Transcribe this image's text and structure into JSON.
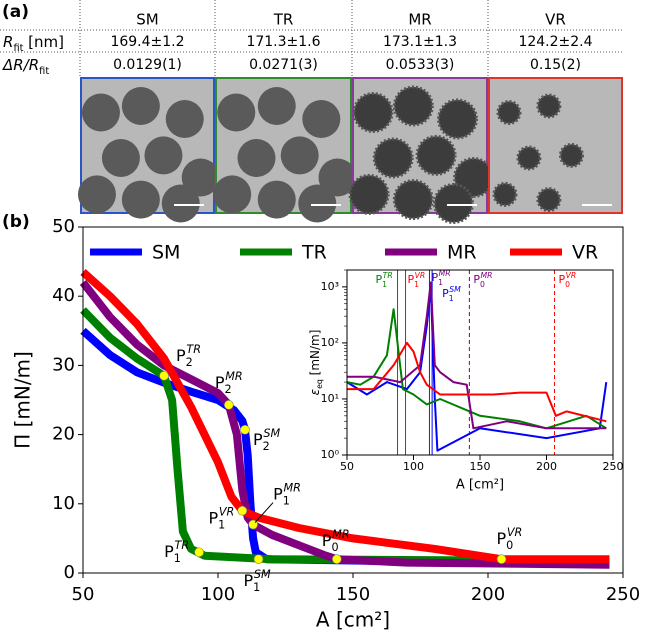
{
  "panel_a": {
    "label": "(a)",
    "columns": [
      {
        "name": "SM",
        "color": "#2a55c8"
      },
      {
        "name": "TR",
        "color": "#2e8b2e"
      },
      {
        "name": "MR",
        "color": "#8a3a9a"
      },
      {
        "name": "VR",
        "color": "#e0342a"
      }
    ],
    "rows": [
      {
        "label": {
          "main": "R",
          "sub": "fit",
          "unit": " [nm]"
        },
        "values": [
          "169.4±1.2",
          "171.3±1.6",
          "173.1±1.3",
          "124.2±2.4"
        ]
      },
      {
        "label": {
          "main": "ΔR/R",
          "sub": "fit",
          "unit": ""
        },
        "values": [
          "0.0129(1)",
          "0.0271(3)",
          "0.0533(3)",
          "0.15(2)"
        ]
      }
    ]
  },
  "chart_data": [
    {
      "type": "line",
      "panel_label": "(b)",
      "x_label": "A [cm²]",
      "y_label": "Π [mN/m]",
      "xlim": [
        50,
        250
      ],
      "ylim": [
        0,
        50
      ],
      "xticks": [
        50,
        100,
        150,
        200,
        250
      ],
      "yticks": [
        0,
        10,
        20,
        30,
        40,
        50
      ],
      "legend": "top",
      "series": [
        {
          "name": "SM",
          "color": "#0000ff",
          "x": [
            50,
            60,
            70,
            80,
            90,
            100,
            106,
            109,
            110,
            111,
            112,
            113,
            114,
            118,
            150,
            200,
            245
          ],
          "values": [
            35,
            31.5,
            29,
            27.5,
            26.2,
            25,
            23.5,
            22,
            20.7,
            17,
            10,
            5,
            3,
            2,
            1.8,
            1.5,
            1.5
          ]
        },
        {
          "name": "TR",
          "color": "#008000",
          "x": [
            50,
            60,
            70,
            80,
            83,
            85,
            87,
            90,
            95,
            120,
            200,
            245
          ],
          "values": [
            38,
            34,
            31,
            28.5,
            25,
            15,
            6,
            3.5,
            2.5,
            2,
            1.8,
            1.8
          ]
        },
        {
          "name": "MR",
          "color": "#800080",
          "x": [
            50,
            60,
            70,
            80,
            90,
            100,
            104,
            107,
            109,
            111,
            113,
            120,
            130,
            140,
            144,
            170,
            245
          ],
          "values": [
            42,
            37,
            33,
            30,
            28,
            26,
            24.3,
            20,
            12,
            8,
            7,
            5.5,
            4,
            2.5,
            2,
            1.5,
            1.2
          ]
        },
        {
          "name": "VR",
          "color": "#ff0000",
          "x": [
            50,
            60,
            70,
            80,
            90,
            100,
            105,
            109,
            115,
            130,
            150,
            180,
            205,
            245
          ],
          "values": [
            43.5,
            40,
            36,
            31,
            24,
            16,
            11,
            9,
            8,
            6.5,
            5,
            3.5,
            2,
            2
          ]
        }
      ],
      "points": [
        {
          "text": "P",
          "sub": "2",
          "sup": "TR",
          "x": 80,
          "y": 28.5
        },
        {
          "text": "P",
          "sub": "2",
          "sup": "MR",
          "x": 104,
          "y": 24.3
        },
        {
          "text": "P",
          "sub": "2",
          "sup": "SM",
          "x": 110,
          "y": 20.7
        },
        {
          "text": "P",
          "sub": "1",
          "sup": "VR",
          "x": 109,
          "y": 9
        },
        {
          "text": "P",
          "sub": "1",
          "sup": "MR",
          "x": 113,
          "y": 7
        },
        {
          "text": "P",
          "sub": "1",
          "sup": "TR",
          "x": 93,
          "y": 3
        },
        {
          "text": "P",
          "sub": "1",
          "sup": "SM",
          "x": 115,
          "y": 2
        },
        {
          "text": "P",
          "sub": "0",
          "sup": "MR",
          "x": 144,
          "y": 2
        },
        {
          "text": "P",
          "sub": "0",
          "sup": "VR",
          "x": 205,
          "y": 2
        }
      ]
    },
    {
      "type": "line",
      "x_label": "A [cm²]",
      "y_label": {
        "main": "ε",
        "sub": "eq",
        "unit": " [mN/m]"
      },
      "xlim": [
        50,
        250
      ],
      "ylim": [
        1,
        2000
      ],
      "log_y": true,
      "xticks": [
        50,
        100,
        150,
        200,
        250
      ],
      "yticks": [
        {
          "value": 1,
          "label": "10⁰"
        },
        {
          "value": 10,
          "label": "10¹"
        },
        {
          "value": 100,
          "label": "10²"
        },
        {
          "value": 1000,
          "label": "10³"
        }
      ],
      "series": [
        {
          "name": "SM",
          "color": "#0000ff",
          "x": [
            50,
            65,
            80,
            95,
            105,
            110,
            113,
            116,
            118,
            150,
            200,
            240,
            245
          ],
          "values": [
            20,
            12,
            20,
            15,
            30,
            200,
            1000,
            10,
            1.2,
            3,
            2,
            3,
            20
          ]
        },
        {
          "name": "TR",
          "color": "#008000",
          "x": [
            50,
            60,
            70,
            80,
            85,
            88,
            92,
            100,
            110,
            120,
            150,
            180,
            200,
            230,
            245
          ],
          "values": [
            20,
            18,
            25,
            60,
            400,
            100,
            15,
            12,
            8,
            10,
            5,
            4,
            3,
            5,
            3
          ]
        },
        {
          "name": "MR",
          "color": "#800080",
          "x": [
            50,
            70,
            90,
            105,
            110,
            113,
            116,
            120,
            130,
            140,
            145,
            170,
            200,
            245
          ],
          "values": [
            25,
            25,
            20,
            40,
            300,
            1200,
            40,
            30,
            20,
            18,
            3,
            4,
            3,
            3
          ]
        },
        {
          "name": "VR",
          "color": "#ff0000",
          "x": [
            50,
            70,
            85,
            95,
            100,
            105,
            110,
            120,
            140,
            160,
            180,
            200,
            207,
            215,
            245
          ],
          "values": [
            15,
            15,
            40,
            100,
            70,
            30,
            18,
            12,
            12,
            12,
            13,
            13,
            5,
            6,
            4
          ]
        }
      ],
      "vlines": [
        {
          "x": 88,
          "color": "#008000",
          "dashed": false,
          "text": "P",
          "sub": "1",
          "sup": "TR"
        },
        {
          "x": 94,
          "color": "#ff0000",
          "dashed": false,
          "text": "P",
          "sub": "1",
          "sup": "VR"
        },
        {
          "x": 112,
          "color": "#800080",
          "dashed": false,
          "text": "P",
          "sub": "1",
          "sup": "MR"
        },
        {
          "x": 114,
          "color": "#0000ff",
          "dashed": false,
          "text": "P",
          "sub": "1",
          "sup": "SM"
        },
        {
          "x": 142,
          "color": "#800080",
          "dashed": true,
          "text": "P",
          "sub": "0",
          "sup": "MR"
        },
        {
          "x": 206,
          "color": "#ff0000",
          "dashed": true,
          "text": "P",
          "sub": "0",
          "sup": "VR"
        }
      ]
    }
  ]
}
